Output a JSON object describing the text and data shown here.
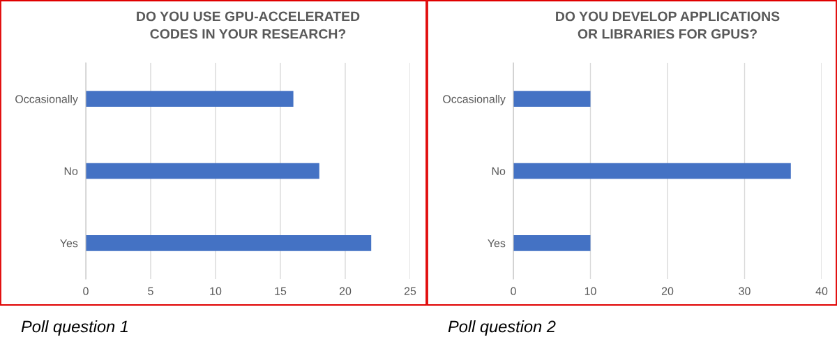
{
  "chart_data": [
    {
      "type": "bar",
      "orientation": "horizontal",
      "title": "DO YOU USE GPU-ACCELERATED CODES IN YOUR RESEARCH?",
      "categories": [
        "Occasionally",
        "No",
        "Yes"
      ],
      "values": [
        16,
        18,
        22
      ],
      "color": "#4472c4",
      "xlim": [
        0,
        25
      ],
      "xticks": [
        0,
        5,
        10,
        15,
        20,
        25
      ],
      "grid": "x",
      "legend": false,
      "annotations": [
        "Poll question 1"
      ]
    },
    {
      "type": "bar",
      "orientation": "horizontal",
      "title": "DO YOU DEVELOP APPLICATIONS OR LIBRARIES FOR GPUS?",
      "categories": [
        "Occasionally",
        "No",
        "Yes"
      ],
      "values": [
        10,
        36,
        10
      ],
      "color": "#4472c4",
      "xlim": [
        0,
        40
      ],
      "xticks": [
        0,
        10,
        20,
        30,
        40
      ],
      "grid": "x",
      "legend": false,
      "annotations": [
        "Poll question 2"
      ]
    }
  ]
}
